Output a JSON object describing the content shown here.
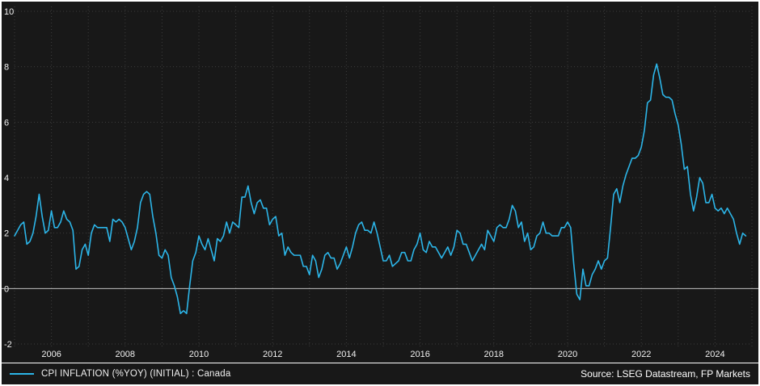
{
  "chart": {
    "legend_label": "CPI INFLATION (%YOY) (INITIAL) : Canada",
    "source_label": "Source: LSEG Datastream, FP Markets",
    "line_color": "#2cb5e8",
    "background_color": "#181818",
    "grid_color": "#3c3c3c",
    "zero_line_color": "#c0c0c0",
    "text_color": "#f0f0f0"
  },
  "chart_data": {
    "type": "line",
    "title": "",
    "xlabel": "",
    "ylabel": "",
    "ylim": [
      -2,
      10
    ],
    "y_ticks": [
      -2,
      0,
      2,
      4,
      6,
      8,
      10
    ],
    "x_tick_years": [
      2006,
      2008,
      2010,
      2012,
      2014,
      2016,
      2018,
      2020,
      2022,
      2024
    ],
    "x_range_years": [
      2005,
      2025
    ],
    "grid": true,
    "legend_position": "bottom-left",
    "series": [
      {
        "name": "CPI INFLATION (%YOY) (INITIAL) : Canada",
        "start_year": 2005,
        "start_month": 1,
        "frequency": "monthly",
        "values": [
          1.9,
          2.1,
          2.3,
          2.4,
          1.6,
          1.7,
          2.0,
          2.6,
          3.4,
          2.6,
          2.0,
          2.1,
          2.8,
          2.2,
          2.2,
          2.4,
          2.8,
          2.5,
          2.4,
          2.1,
          0.7,
          0.8,
          1.4,
          1.6,
          1.2,
          2.0,
          2.3,
          2.2,
          2.2,
          2.2,
          2.2,
          1.7,
          2.5,
          2.4,
          2.5,
          2.4,
          2.2,
          1.8,
          1.4,
          1.7,
          2.2,
          3.1,
          3.4,
          3.5,
          3.4,
          2.6,
          2.0,
          1.2,
          1.1,
          1.4,
          1.2,
          0.4,
          0.1,
          -0.3,
          -0.9,
          -0.8,
          -0.9,
          0.1,
          1.0,
          1.3,
          1.9,
          1.6,
          1.4,
          1.8,
          1.4,
          1.0,
          1.8,
          1.7,
          1.9,
          2.4,
          2.0,
          2.4,
          2.3,
          2.2,
          3.3,
          3.3,
          3.7,
          3.1,
          2.7,
          3.1,
          3.2,
          2.9,
          2.9,
          2.3,
          2.5,
          2.6,
          1.9,
          2.0,
          1.2,
          1.5,
          1.3,
          1.2,
          1.2,
          1.2,
          0.8,
          0.8,
          0.5,
          1.2,
          1.0,
          0.4,
          0.7,
          1.2,
          1.3,
          1.1,
          1.1,
          0.7,
          0.9,
          1.2,
          1.5,
          1.1,
          1.5,
          2.0,
          2.3,
          2.4,
          2.1,
          2.1,
          2.0,
          2.4,
          2.0,
          1.5,
          1.0,
          1.0,
          1.2,
          0.8,
          0.9,
          1.0,
          1.3,
          1.3,
          1.0,
          1.0,
          1.4,
          1.6,
          2.0,
          1.4,
          1.3,
          1.7,
          1.5,
          1.5,
          1.3,
          1.1,
          1.3,
          1.5,
          1.2,
          1.5,
          2.1,
          2.0,
          1.6,
          1.6,
          1.3,
          1.0,
          1.2,
          1.4,
          1.6,
          1.4,
          2.1,
          1.9,
          1.7,
          2.2,
          2.3,
          2.2,
          2.2,
          2.5,
          3.0,
          2.8,
          2.2,
          2.4,
          1.7,
          2.0,
          1.4,
          1.5,
          1.9,
          2.0,
          2.4,
          2.0,
          2.0,
          1.9,
          1.9,
          1.9,
          2.2,
          2.2,
          2.4,
          2.2,
          0.9,
          -0.2,
          -0.4,
          0.7,
          0.1,
          0.1,
          0.5,
          0.7,
          1.0,
          0.7,
          1.0,
          1.1,
          2.2,
          3.4,
          3.6,
          3.1,
          3.7,
          4.1,
          4.4,
          4.7,
          4.7,
          4.8,
          5.1,
          5.7,
          6.7,
          6.8,
          7.7,
          8.1,
          7.6,
          7.0,
          6.9,
          6.9,
          6.8,
          6.3,
          5.9,
          5.2,
          4.3,
          4.4,
          3.4,
          2.8,
          3.3,
          4.0,
          3.8,
          3.1,
          3.1,
          3.4,
          2.9,
          2.8,
          2.9,
          2.7,
          2.9,
          2.7,
          2.5,
          2.0,
          1.6,
          2.0,
          1.9
        ]
      }
    ]
  }
}
